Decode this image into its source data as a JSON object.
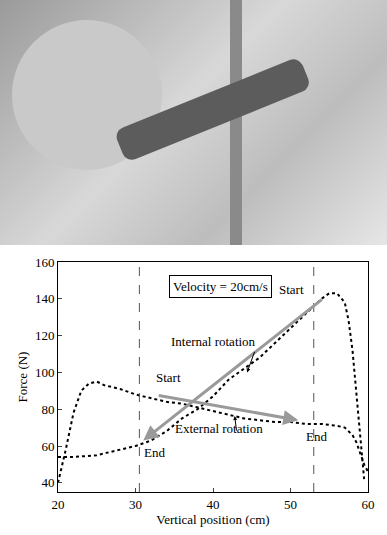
{
  "chart_data": {
    "type": "line",
    "x_label": "Vertical position (cm)",
    "y_label": "Force (N)",
    "xlim": [
      20,
      60
    ],
    "xticks": [
      20,
      30,
      40,
      50,
      60
    ],
    "ylim": [
      35,
      160
    ],
    "yticks": [
      40,
      60,
      80,
      100,
      120,
      140,
      160
    ],
    "grid": false,
    "vlines": [
      30.5,
      53
    ],
    "annotations": [
      "Velocity = 20cm/s",
      "Start",
      "End",
      "Start",
      "End"
    ],
    "series": [
      {
        "name": "Internal rotation",
        "color": "#000000",
        "line_style": "dotted",
        "x": [
          20,
          22,
          25,
          28,
          30,
          32,
          34,
          36,
          38,
          40,
          42,
          44,
          46,
          48,
          50,
          52,
          54,
          55,
          56,
          57,
          57.5,
          58,
          58.5,
          59,
          59.5
        ],
        "values": [
          54,
          54,
          55,
          58,
          60,
          63,
          68,
          75,
          80,
          87,
          96,
          102,
          108,
          116,
          124,
          132,
          140,
          143,
          143,
          138,
          128,
          112,
          90,
          65,
          42
        ]
      },
      {
        "name": "External rotation",
        "color": "#000000",
        "line_style": "dotted",
        "x": [
          20,
          21,
          22,
          23,
          24,
          25,
          26,
          28,
          30,
          32,
          34,
          36,
          38,
          40,
          42,
          44,
          46,
          48,
          50,
          52,
          54,
          56,
          57,
          58,
          58.5,
          59,
          59.5,
          60
        ],
        "values": [
          40,
          58,
          78,
          90,
          94,
          95,
          93,
          91,
          88,
          86,
          84,
          83,
          81,
          79,
          77,
          75,
          74,
          73,
          73,
          72,
          72,
          71,
          70,
          66,
          62,
          56,
          50,
          46
        ]
      }
    ]
  }
}
